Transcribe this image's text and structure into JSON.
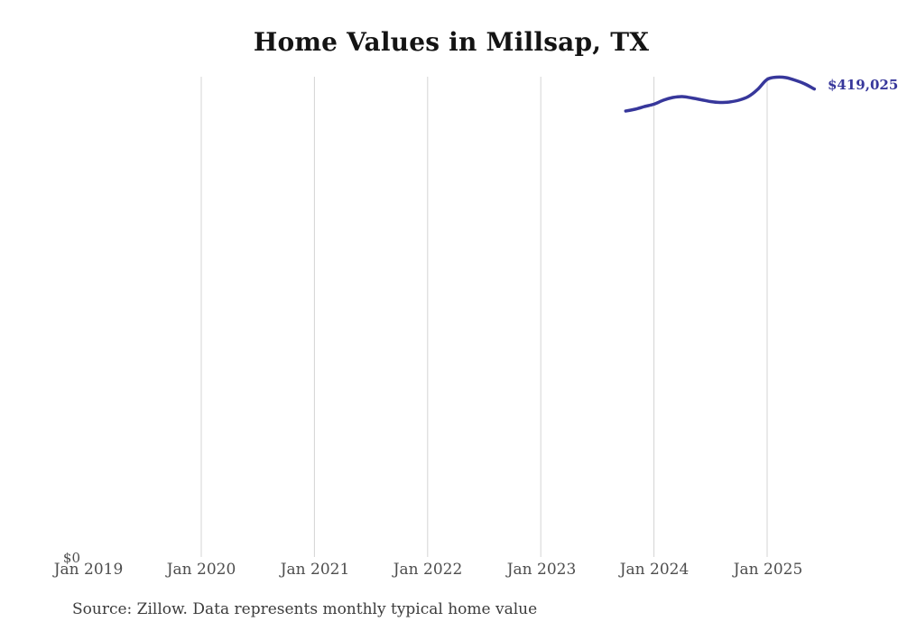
{
  "title": "Home Values in Millsap, TX",
  "source_note": "Source: Zillow. Data represents monthly typical home value",
  "colors": {
    "line": "#37379b",
    "grid": "#d4d4d4",
    "axis_text": "#4d4d4d",
    "title_text": "#141414",
    "source_text": "#3c3c3c",
    "background": "#ffffff"
  },
  "chart_data": {
    "type": "line",
    "title": "Home Values in Millsap, TX",
    "xlabel": "",
    "ylabel": "",
    "x_tick_labels": [
      "Jan 2019",
      "Jan 2020",
      "Jan 2021",
      "Jan 2022",
      "Jan 2023",
      "Jan 2024",
      "Jan 2025"
    ],
    "y_tick_labels": [
      "$0"
    ],
    "ylim": [
      0,
      430000
    ],
    "grid": "vertical-gridlines-only",
    "legend": "none",
    "end_label": "$419,025",
    "series": [
      {
        "name": "Monthly typical home value",
        "x": [
          "Oct 2023",
          "Nov 2023",
          "Dec 2023",
          "Jan 2024",
          "Feb 2024",
          "Mar 2024",
          "Apr 2024",
          "May 2024",
          "Jun 2024",
          "Jul 2024",
          "Aug 2024",
          "Sep 2024",
          "Oct 2024",
          "Nov 2024",
          "Dec 2024",
          "Jan 2025",
          "Feb 2025",
          "Mar 2025",
          "Apr 2025",
          "May 2025",
          "Jun 2025"
        ],
        "month_offset_from_jan2019": 57,
        "values": [
          399300,
          400900,
          403300,
          405400,
          409000,
          411400,
          412200,
          411000,
          409400,
          407800,
          407000,
          407400,
          409000,
          412200,
          418700,
          427600,
          429600,
          429200,
          426800,
          423500,
          419025
        ]
      }
    ]
  }
}
